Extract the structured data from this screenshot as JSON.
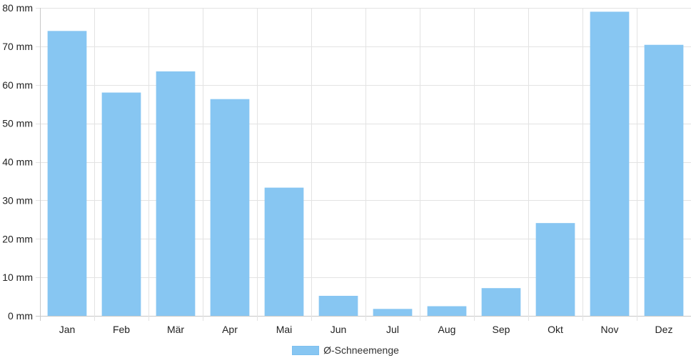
{
  "chart_data": {
    "type": "bar",
    "categories": [
      "Jan",
      "Feb",
      "Mär",
      "Apr",
      "Mai",
      "Jun",
      "Jul",
      "Aug",
      "Sep",
      "Okt",
      "Nov",
      "Dez"
    ],
    "series": [
      {
        "name": "Ø-Schneemenge",
        "values": [
          74,
          58,
          63.5,
          56.3,
          33.3,
          5.2,
          1.8,
          2.5,
          7.2,
          24.1,
          79,
          70.4
        ]
      }
    ],
    "y_ticks": [
      "0 mm",
      "10 mm",
      "20 mm",
      "30 mm",
      "40 mm",
      "50 mm",
      "60 mm",
      "70 mm",
      "80 mm"
    ],
    "ylim": [
      0,
      80
    ],
    "y_unit": "mm",
    "grid": true,
    "legend_position": "bottom",
    "colors": {
      "bar": "#87c6f2",
      "grid": "#e3e3e3",
      "axis": "#c8c8c8"
    }
  }
}
